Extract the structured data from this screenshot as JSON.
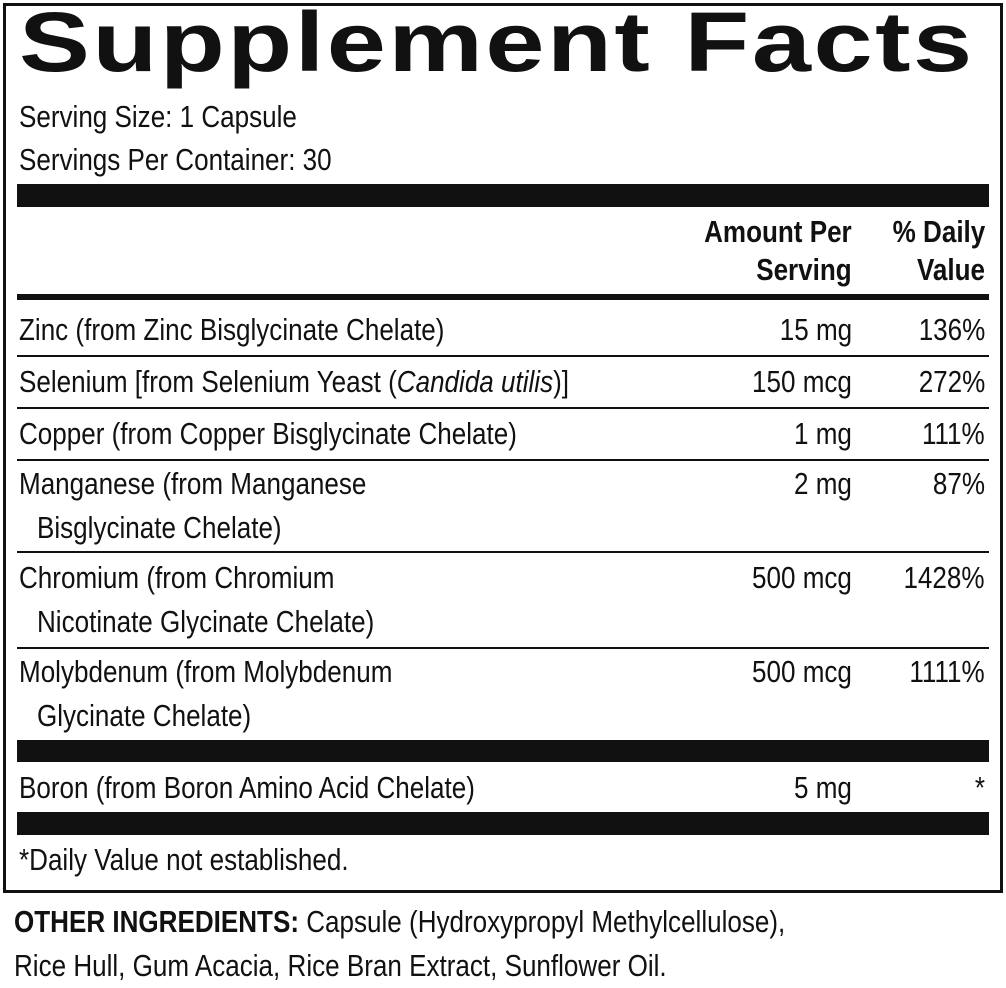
{
  "title": "Supplement Facts",
  "serving_size": "Serving Size: 1 Capsule",
  "servings_per_container": "Servings Per Container: 30",
  "header": {
    "amount": [
      "Amount Per",
      "Serving"
    ],
    "daily_value": [
      "% Daily",
      "Value"
    ]
  },
  "rows": [
    {
      "name_lines": [
        "Zinc (from Zinc Bisglycinate Chelate)"
      ],
      "amount": "15 mg",
      "daily_value": "136%"
    },
    {
      "name_parts": {
        "before": "Selenium [from Selenium Yeast (",
        "italic": "Candida utilis",
        "after": ")]"
      },
      "amount": "150 mcg",
      "daily_value": "272%"
    },
    {
      "name_lines": [
        "Copper (from Copper Bisglycinate Chelate)"
      ],
      "amount": "1 mg",
      "daily_value": "111%"
    },
    {
      "name_lines": [
        "Manganese (from Manganese",
        "Bisglycinate Chelate)"
      ],
      "amount": "2 mg",
      "daily_value": "87%"
    },
    {
      "name_lines": [
        "Chromium (from Chromium",
        "Nicotinate Glycinate Chelate)"
      ],
      "amount": "500 mcg",
      "daily_value": "1428%"
    },
    {
      "name_lines": [
        "Molybdenum (from Molybdenum",
        "Glycinate Chelate)"
      ],
      "amount": "500 mcg",
      "daily_value": "1111%"
    },
    {
      "name_lines": [
        "Boron (from Boron Amino Acid Chelate)"
      ],
      "amount": "5 mg",
      "daily_value": "*"
    }
  ],
  "footnote": "*Daily Value not established.",
  "other_ingredients": {
    "label": "OTHER INGREDIENTS:",
    "lines": [
      " Capsule (Hydroxypropyl Methylcellulose),",
      "Rice Hull, Gum Acacia, Rice Bran Extract, Sunflower Oil."
    ]
  }
}
